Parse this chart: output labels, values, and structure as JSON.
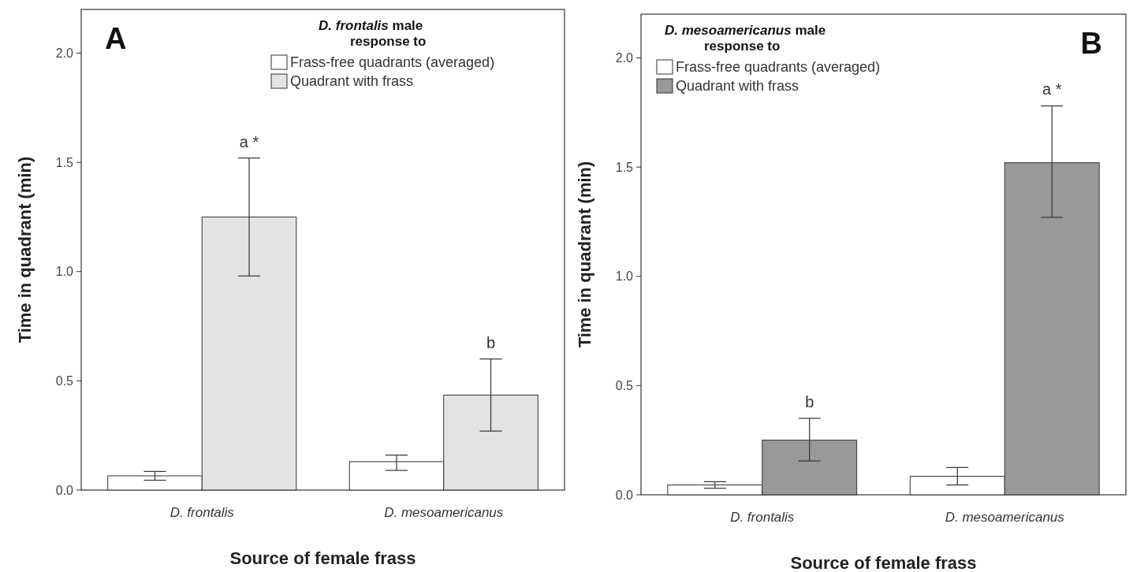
{
  "chart_data": [
    {
      "type": "bar",
      "title": "A",
      "legend_title": "D. frontalis male response to",
      "xlabel": "Source of female frass",
      "ylabel": "Time in quadrant (min)",
      "categories": [
        "D. frontalis",
        "D. mesoamericanus"
      ],
      "series": [
        {
          "name": "Frass-free quadrants (averaged)",
          "color": "#ffffff",
          "values": [
            0.065,
            0.13
          ],
          "errors": [
            [
              0.045,
              0.085
            ],
            [
              0.09,
              0.16
            ]
          ]
        },
        {
          "name": "Quadrant with frass",
          "color": "#e3e3e3",
          "values": [
            1.25,
            0.435
          ],
          "errors": [
            [
              0.98,
              1.52
            ],
            [
              0.27,
              0.6
            ]
          ]
        }
      ],
      "annotations": [
        "a *",
        "b"
      ],
      "ylim": [
        0,
        2.2
      ],
      "yticks": [
        {
          "value": 0,
          "label": "0.0"
        },
        {
          "value": 0.5,
          "label": "0.5"
        },
        {
          "value": 1,
          "label": "1.0"
        },
        {
          "value": 1.5,
          "label": "1.5"
        },
        {
          "value": 2,
          "label": "2.0"
        }
      ],
      "grid": false,
      "legend": "top right"
    },
    {
      "type": "bar",
      "title": "B",
      "legend_title": "D. mesoamericanus male response to",
      "xlabel": "Source of female frass",
      "ylabel": "Time in quadrant (min)",
      "categories": [
        "D. frontalis",
        "D. mesoamericanus"
      ],
      "series": [
        {
          "name": "Frass-free quadrants (averaged)",
          "color": "#ffffff",
          "values": [
            0.045,
            0.085
          ],
          "errors": [
            [
              0.03,
              0.06
            ],
            [
              0.045,
              0.125
            ]
          ]
        },
        {
          "name": "Quadrant with frass",
          "color": "#999999",
          "values": [
            0.25,
            1.52
          ],
          "errors": [
            [
              0.155,
              0.35
            ],
            [
              1.27,
              1.78
            ]
          ]
        }
      ],
      "annotations": [
        "b",
        "a *"
      ],
      "ylim": [
        0,
        2.2
      ],
      "yticks": [
        {
          "value": 0,
          "label": "0.0"
        },
        {
          "value": 0.5,
          "label": "0.5"
        },
        {
          "value": 1,
          "label": "1.0"
        },
        {
          "value": 1.5,
          "label": "1.5"
        },
        {
          "value": 2,
          "label": "2.0"
        }
      ],
      "grid": false,
      "legend": "top left"
    }
  ]
}
